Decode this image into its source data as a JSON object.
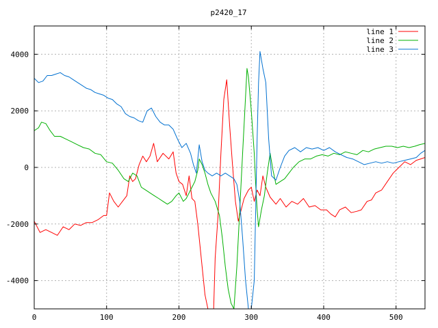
{
  "chart_data": {
    "type": "line",
    "title": "p2420_17",
    "xlabel": "",
    "ylabel": "",
    "xlim": [
      0,
      540
    ],
    "ylim": [
      -5000,
      5000
    ],
    "xticks": [
      0,
      100,
      200,
      300,
      400,
      500
    ],
    "yticks": [
      -4000,
      -2000,
      0,
      2000,
      4000
    ],
    "grid": true,
    "legend_position": "top-right",
    "series": [
      {
        "name": "line 1",
        "color": "#ff0000",
        "points": [
          [
            0,
            -1900
          ],
          [
            8,
            -2300
          ],
          [
            16,
            -2200
          ],
          [
            24,
            -2300
          ],
          [
            32,
            -2400
          ],
          [
            40,
            -2100
          ],
          [
            48,
            -2200
          ],
          [
            56,
            -2000
          ],
          [
            64,
            -2050
          ],
          [
            72,
            -1950
          ],
          [
            80,
            -1950
          ],
          [
            88,
            -1850
          ],
          [
            96,
            -1700
          ],
          [
            100,
            -1700
          ],
          [
            104,
            -900
          ],
          [
            110,
            -1200
          ],
          [
            116,
            -1400
          ],
          [
            122,
            -1200
          ],
          [
            128,
            -1000
          ],
          [
            132,
            -300
          ],
          [
            136,
            -500
          ],
          [
            140,
            -400
          ],
          [
            145,
            100
          ],
          [
            150,
            400
          ],
          [
            155,
            200
          ],
          [
            160,
            400
          ],
          [
            165,
            850
          ],
          [
            170,
            200
          ],
          [
            178,
            500
          ],
          [
            186,
            300
          ],
          [
            192,
            550
          ],
          [
            196,
            -200
          ],
          [
            200,
            -500
          ],
          [
            205,
            -600
          ],
          [
            210,
            -1000
          ],
          [
            214,
            -300
          ],
          [
            218,
            -1100
          ],
          [
            222,
            -1200
          ],
          [
            226,
            -2000
          ],
          [
            230,
            -3000
          ],
          [
            236,
            -4500
          ],
          [
            240,
            -5000
          ],
          [
            244,
            -5000
          ],
          [
            248,
            -5000
          ],
          [
            250,
            -3200
          ],
          [
            254,
            -1700
          ],
          [
            258,
            500
          ],
          [
            262,
            2400
          ],
          [
            266,
            3100
          ],
          [
            270,
            1500
          ],
          [
            274,
            100
          ],
          [
            278,
            -1200
          ],
          [
            282,
            -1900
          ],
          [
            286,
            -1500
          ],
          [
            290,
            -1100
          ],
          [
            296,
            -800
          ],
          [
            300,
            -700
          ],
          [
            304,
            -1200
          ],
          [
            308,
            -800
          ],
          [
            312,
            -1000
          ],
          [
            316,
            -300
          ],
          [
            320,
            -700
          ],
          [
            326,
            -1050
          ],
          [
            334,
            -1300
          ],
          [
            340,
            -1100
          ],
          [
            348,
            -1400
          ],
          [
            356,
            -1200
          ],
          [
            364,
            -1300
          ],
          [
            372,
            -1100
          ],
          [
            380,
            -1400
          ],
          [
            388,
            -1350
          ],
          [
            396,
            -1500
          ],
          [
            404,
            -1500
          ],
          [
            410,
            -1650
          ],
          [
            416,
            -1750
          ],
          [
            422,
            -1500
          ],
          [
            430,
            -1400
          ],
          [
            438,
            -1600
          ],
          [
            446,
            -1550
          ],
          [
            452,
            -1500
          ],
          [
            460,
            -1200
          ],
          [
            466,
            -1150
          ],
          [
            472,
            -900
          ],
          [
            480,
            -800
          ],
          [
            488,
            -500
          ],
          [
            496,
            -200
          ],
          [
            504,
            0
          ],
          [
            512,
            200
          ],
          [
            520,
            100
          ],
          [
            528,
            250
          ],
          [
            534,
            300
          ],
          [
            540,
            350
          ]
        ]
      },
      {
        "name": "line 2",
        "color": "#00b000",
        "points": [
          [
            0,
            1300
          ],
          [
            6,
            1400
          ],
          [
            10,
            1600
          ],
          [
            16,
            1550
          ],
          [
            22,
            1300
          ],
          [
            28,
            1100
          ],
          [
            36,
            1100
          ],
          [
            44,
            1000
          ],
          [
            52,
            900
          ],
          [
            60,
            800
          ],
          [
            68,
            700
          ],
          [
            76,
            650
          ],
          [
            84,
            500
          ],
          [
            92,
            450
          ],
          [
            100,
            200
          ],
          [
            108,
            150
          ],
          [
            116,
            -100
          ],
          [
            124,
            -400
          ],
          [
            130,
            -500
          ],
          [
            136,
            -200
          ],
          [
            142,
            -300
          ],
          [
            148,
            -700
          ],
          [
            154,
            -800
          ],
          [
            160,
            -900
          ],
          [
            166,
            -1000
          ],
          [
            172,
            -1100
          ],
          [
            178,
            -1200
          ],
          [
            184,
            -1300
          ],
          [
            190,
            -1200
          ],
          [
            196,
            -1000
          ],
          [
            200,
            -900
          ],
          [
            206,
            -1200
          ],
          [
            210,
            -1100
          ],
          [
            214,
            -900
          ],
          [
            218,
            -700
          ],
          [
            222,
            -500
          ],
          [
            226,
            -100
          ],
          [
            228,
            300
          ],
          [
            232,
            100
          ],
          [
            236,
            -200
          ],
          [
            240,
            -600
          ],
          [
            244,
            -900
          ],
          [
            250,
            -1200
          ],
          [
            256,
            -1700
          ],
          [
            260,
            -2500
          ],
          [
            264,
            -3500
          ],
          [
            268,
            -4300
          ],
          [
            272,
            -4800
          ],
          [
            276,
            -5000
          ],
          [
            280,
            -3500
          ],
          [
            284,
            -1500
          ],
          [
            288,
            500
          ],
          [
            292,
            2500
          ],
          [
            294,
            3500
          ],
          [
            296,
            3200
          ],
          [
            300,
            2000
          ],
          [
            304,
            500
          ],
          [
            306,
            -600
          ],
          [
            308,
            -1500
          ],
          [
            310,
            -2100
          ],
          [
            314,
            -1500
          ],
          [
            318,
            -1000
          ],
          [
            322,
            -200
          ],
          [
            326,
            500
          ],
          [
            330,
            -100
          ],
          [
            334,
            -600
          ],
          [
            340,
            -500
          ],
          [
            346,
            -400
          ],
          [
            352,
            -200
          ],
          [
            358,
            0
          ],
          [
            366,
            200
          ],
          [
            374,
            300
          ],
          [
            382,
            300
          ],
          [
            390,
            400
          ],
          [
            398,
            450
          ],
          [
            406,
            400
          ],
          [
            414,
            500
          ],
          [
            422,
            450
          ],
          [
            430,
            550
          ],
          [
            438,
            500
          ],
          [
            446,
            450
          ],
          [
            454,
            600
          ],
          [
            462,
            550
          ],
          [
            470,
            650
          ],
          [
            478,
            700
          ],
          [
            486,
            750
          ],
          [
            494,
            750
          ],
          [
            502,
            700
          ],
          [
            510,
            750
          ],
          [
            518,
            700
          ],
          [
            526,
            750
          ],
          [
            532,
            800
          ],
          [
            540,
            850
          ]
        ]
      },
      {
        "name": "line 3",
        "color": "#0070d0",
        "points": [
          [
            0,
            3150
          ],
          [
            6,
            3000
          ],
          [
            12,
            3050
          ],
          [
            18,
            3250
          ],
          [
            24,
            3250
          ],
          [
            30,
            3300
          ],
          [
            36,
            3350
          ],
          [
            42,
            3250
          ],
          [
            48,
            3200
          ],
          [
            54,
            3100
          ],
          [
            60,
            3000
          ],
          [
            66,
            2900
          ],
          [
            72,
            2800
          ],
          [
            78,
            2750
          ],
          [
            84,
            2650
          ],
          [
            90,
            2600
          ],
          [
            96,
            2550
          ],
          [
            102,
            2450
          ],
          [
            108,
            2400
          ],
          [
            114,
            2250
          ],
          [
            120,
            2150
          ],
          [
            126,
            1900
          ],
          [
            132,
            1800
          ],
          [
            138,
            1750
          ],
          [
            144,
            1650
          ],
          [
            150,
            1600
          ],
          [
            156,
            2000
          ],
          [
            162,
            2100
          ],
          [
            168,
            1800
          ],
          [
            174,
            1600
          ],
          [
            180,
            1500
          ],
          [
            186,
            1500
          ],
          [
            192,
            1350
          ],
          [
            198,
            1000
          ],
          [
            204,
            700
          ],
          [
            210,
            850
          ],
          [
            216,
            500
          ],
          [
            220,
            100
          ],
          [
            224,
            -200
          ],
          [
            228,
            800
          ],
          [
            232,
            200
          ],
          [
            236,
            -100
          ],
          [
            240,
            -200
          ],
          [
            246,
            -300
          ],
          [
            252,
            -200
          ],
          [
            258,
            -300
          ],
          [
            264,
            -200
          ],
          [
            270,
            -300
          ],
          [
            276,
            -400
          ],
          [
            280,
            -600
          ],
          [
            284,
            -1200
          ],
          [
            288,
            -2500
          ],
          [
            292,
            -4000
          ],
          [
            296,
            -5000
          ],
          [
            300,
            -5000
          ],
          [
            304,
            -4000
          ],
          [
            306,
            -1500
          ],
          [
            308,
            1000
          ],
          [
            310,
            3000
          ],
          [
            312,
            4100
          ],
          [
            316,
            3500
          ],
          [
            320,
            3000
          ],
          [
            324,
            1000
          ],
          [
            328,
            -300
          ],
          [
            334,
            -450
          ],
          [
            340,
            0
          ],
          [
            346,
            400
          ],
          [
            352,
            600
          ],
          [
            360,
            700
          ],
          [
            368,
            550
          ],
          [
            376,
            700
          ],
          [
            384,
            650
          ],
          [
            392,
            700
          ],
          [
            400,
            600
          ],
          [
            408,
            700
          ],
          [
            416,
            550
          ],
          [
            424,
            450
          ],
          [
            432,
            350
          ],
          [
            440,
            300
          ],
          [
            448,
            200
          ],
          [
            456,
            100
          ],
          [
            464,
            150
          ],
          [
            472,
            200
          ],
          [
            480,
            150
          ],
          [
            488,
            200
          ],
          [
            496,
            150
          ],
          [
            504,
            200
          ],
          [
            512,
            250
          ],
          [
            520,
            300
          ],
          [
            528,
            350
          ],
          [
            534,
            500
          ],
          [
            540,
            600
          ]
        ]
      }
    ]
  }
}
